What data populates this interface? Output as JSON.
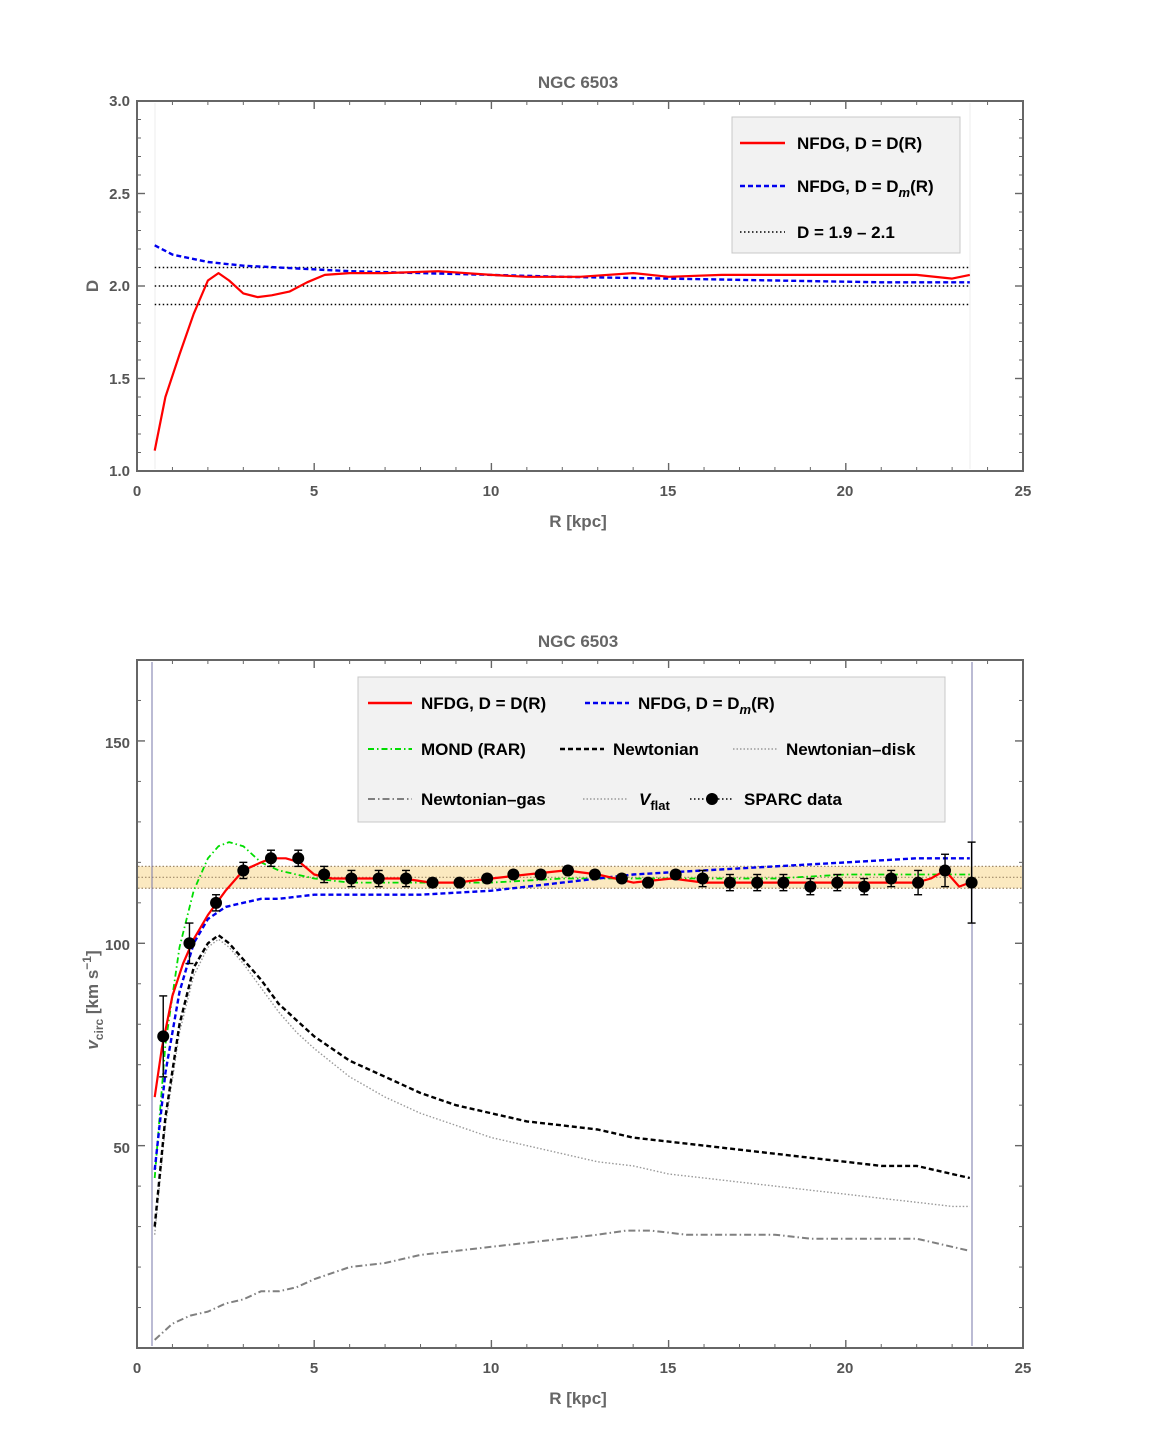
{
  "chart_data": [
    {
      "type": "line",
      "title": "NGC 6503",
      "xlabel": "R [kpc]",
      "ylabel": "D",
      "xlim": [
        0,
        25
      ],
      "ylim": [
        1.0,
        3.0
      ],
      "xticks": [
        "0",
        "5",
        "10",
        "15",
        "20",
        "25"
      ],
      "yticks": [
        "1.0",
        "1.5",
        "2.0",
        "2.5",
        "3.0"
      ],
      "hlines": [
        1.9,
        2.0,
        2.1
      ],
      "legend": {
        "position": "top-right",
        "entries": [
          "NFDG, D = D(R)",
          "NFDG, D = D",
          "D = 1.9 – 2.1"
        ],
        "dm_sub": "m",
        "dm_tail": "(R)"
      },
      "series": [
        {
          "name": "NFDG, D = D(R)",
          "color": "#ff0000",
          "x": [
            0.5,
            0.8,
            1.2,
            1.6,
            2.0,
            2.3,
            2.6,
            3.0,
            3.4,
            3.8,
            4.3,
            4.8,
            5.3,
            6.0,
            7.0,
            8.5,
            10.0,
            11.0,
            12.5,
            14.0,
            15.0,
            16.5,
            18.0,
            19.5,
            21.0,
            22.0,
            23.0,
            23.5
          ],
          "values": [
            1.11,
            1.4,
            1.63,
            1.85,
            2.03,
            2.07,
            2.03,
            1.96,
            1.94,
            1.95,
            1.97,
            2.02,
            2.06,
            2.07,
            2.07,
            2.08,
            2.06,
            2.05,
            2.05,
            2.07,
            2.05,
            2.06,
            2.06,
            2.06,
            2.06,
            2.06,
            2.04,
            2.06
          ]
        },
        {
          "name": "NFDG, D = Dm(R)",
          "color": "#0000ee",
          "x": [
            0.5,
            1.0,
            2.0,
            3.0,
            4.0,
            6.0,
            8.0,
            10.0,
            12.0,
            15.0,
            18.0,
            21.0,
            23.5
          ],
          "values": [
            2.22,
            2.17,
            2.13,
            2.11,
            2.1,
            2.08,
            2.07,
            2.06,
            2.05,
            2.04,
            2.03,
            2.02,
            2.02
          ]
        }
      ]
    },
    {
      "type": "line",
      "title": "NGC 6503",
      "xlabel": "R [kpc]",
      "ylabel": "v",
      "ylabel_sub": "circ",
      "ylabel_units": " [km s",
      "ylabel_exp": "−1",
      "ylabel_close": "]",
      "xlim": [
        0,
        25
      ],
      "ylim": [
        0,
        170
      ],
      "xticks": [
        "0",
        "5",
        "10",
        "15",
        "20",
        "25"
      ],
      "yticks": [
        "50",
        "100",
        "150"
      ],
      "vflat": {
        "value": 116.3,
        "band": [
          113.6,
          119.0
        ]
      },
      "legend": {
        "position": "top",
        "entries": [
          "NFDG, D = D(R)",
          "NFDG, D = D",
          "MOND (RAR)",
          "Newtonian",
          "Newtonian–disk",
          "Newtonian–gas",
          "V",
          "SPARC data"
        ],
        "dm_sub": "m",
        "dm_tail": "(R)",
        "vflat_sub": "flat"
      },
      "series": [
        {
          "name": "Newtonian-gas",
          "color": "#808080",
          "x": [
            0.5,
            1.0,
            1.5,
            2.0,
            2.5,
            3.0,
            3.5,
            4.0,
            4.5,
            5.0,
            6.0,
            7.0,
            8.0,
            9.0,
            10.0,
            11.0,
            12.0,
            13.0,
            13.8,
            14.5,
            15.5,
            16.5,
            17.0,
            18.0,
            19.0,
            20.0,
            21.0,
            22.0,
            23.0,
            23.5
          ],
          "values": [
            2,
            6,
            8,
            9,
            11,
            12,
            14,
            14,
            15,
            17,
            20,
            21,
            23,
            24,
            25,
            26,
            27,
            28,
            29,
            29,
            28,
            28,
            28,
            28,
            27,
            27,
            27,
            27,
            25,
            24
          ]
        },
        {
          "name": "Newtonian-disk",
          "color": "#999999",
          "x": [
            0.5,
            0.8,
            1.2,
            1.6,
            2.0,
            2.3,
            2.6,
            3.0,
            3.5,
            4.0,
            4.5,
            5.0,
            6.0,
            7.0,
            8.0,
            9.0,
            10.0,
            11.0,
            12.0,
            13.0,
            14.0,
            15.0,
            16.0,
            17.0,
            18.0,
            19.0,
            20.0,
            21.0,
            22.0,
            23.0,
            23.5
          ],
          "values": [
            28,
            55,
            78,
            92,
            99,
            101,
            99,
            95,
            89,
            83,
            78,
            74,
            67,
            62,
            58,
            55,
            52,
            50,
            48,
            46,
            45,
            43,
            42,
            41,
            40,
            39,
            38,
            37,
            36,
            35,
            35
          ]
        },
        {
          "name": "Newtonian",
          "color": "#000000",
          "x": [
            0.5,
            0.8,
            1.2,
            1.6,
            2.0,
            2.3,
            2.6,
            3.0,
            3.5,
            4.0,
            4.5,
            5.0,
            6.0,
            7.0,
            8.0,
            9.0,
            10.0,
            11.0,
            12.0,
            13.0,
            14.0,
            15.0,
            16.0,
            17.0,
            18.0,
            19.0,
            20.0,
            21.0,
            22.0,
            23.0,
            23.5
          ],
          "values": [
            30,
            57,
            80,
            94,
            100,
            102,
            100,
            96,
            91,
            85,
            81,
            77,
            71,
            67,
            63,
            60,
            58,
            56,
            55,
            54,
            52,
            51,
            50,
            49,
            48,
            47,
            46,
            45,
            45,
            43,
            42
          ]
        },
        {
          "name": "MOND (RAR)",
          "color": "#00dd00",
          "x": [
            0.5,
            0.8,
            1.2,
            1.6,
            2.0,
            2.3,
            2.6,
            3.0,
            3.5,
            4.0,
            4.5,
            5.0,
            6.0,
            8.0,
            10.0,
            12.0,
            14.0,
            16.0,
            18.0,
            20.0,
            22.0,
            23.5
          ],
          "values": [
            42,
            75,
            99,
            113,
            121,
            124,
            125,
            124,
            120,
            118,
            117,
            116,
            115,
            115,
            115,
            116,
            116,
            116,
            116,
            117,
            117,
            117
          ]
        },
        {
          "name": "NFDG, D = Dm(R)",
          "color": "#0000ee",
          "x": [
            0.5,
            0.8,
            1.2,
            1.6,
            2.0,
            2.5,
            3.0,
            3.5,
            4.0,
            5.0,
            6.0,
            8.0,
            10.0,
            12.0,
            14.0,
            16.0,
            18.0,
            20.0,
            22.0,
            23.5
          ],
          "values": [
            44,
            68,
            88,
            100,
            106,
            109,
            110,
            111,
            111,
            112,
            112,
            112,
            113,
            115,
            117,
            118,
            119,
            120,
            121,
            121
          ]
        },
        {
          "name": "NFDG, D = D(R)",
          "color": "#ff0000",
          "x": [
            0.5,
            0.7,
            1.0,
            1.3,
            1.6,
            2.0,
            2.5,
            3.0,
            3.5,
            3.8,
            4.2,
            4.6,
            5.0,
            5.5,
            6.0,
            6.8,
            7.5,
            8.3,
            9.0,
            10.0,
            11.0,
            12.1,
            13.0,
            14.0,
            15.1,
            16.0,
            17.0,
            18.0,
            19.0,
            20.0,
            21.0,
            22.0,
            22.4,
            22.8,
            23.2,
            23.5
          ],
          "values": [
            62,
            74,
            87,
            95,
            101,
            107,
            113,
            118,
            120,
            121,
            121,
            120,
            117,
            116,
            116,
            116,
            116,
            115,
            115,
            116,
            117,
            118,
            117,
            115,
            116,
            115,
            115,
            115,
            115,
            115,
            115,
            115,
            116,
            118,
            114,
            115
          ]
        },
        {
          "name": "SPARC data",
          "color": "#000000",
          "x": [
            0.74,
            1.48,
            2.23,
            3.0,
            3.78,
            4.55,
            5.28,
            6.05,
            6.82,
            7.59,
            8.34,
            9.1,
            9.88,
            10.62,
            11.39,
            12.16,
            12.92,
            13.68,
            14.42,
            15.2,
            15.96,
            16.73,
            17.5,
            18.24,
            19.0,
            19.76,
            20.52,
            21.28,
            22.04,
            22.8,
            23.55
          ],
          "values": [
            77,
            100,
            110,
            118,
            121,
            121,
            117,
            116,
            116,
            116,
            115,
            115,
            116,
            117,
            117,
            118,
            117,
            116,
            115,
            117,
            116,
            115,
            115,
            115,
            114,
            115,
            114,
            116,
            115,
            118,
            115
          ],
          "errors": [
            10,
            5,
            2,
            2,
            2,
            2,
            2,
            2,
            2,
            2,
            1,
            1,
            1,
            1,
            1,
            1,
            1,
            1,
            1,
            1,
            2,
            2,
            2,
            2,
            2,
            2,
            2,
            2,
            3,
            4,
            10
          ]
        }
      ]
    }
  ]
}
